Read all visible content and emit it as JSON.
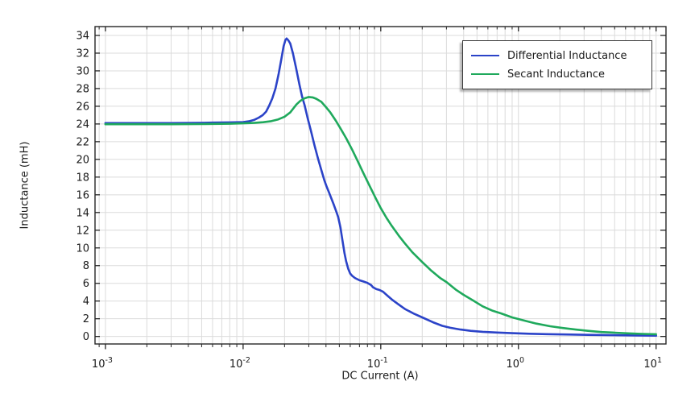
{
  "window": {
    "background": "#ffffff"
  },
  "chart_data": {
    "type": "line",
    "title": "",
    "xlabel": "DC Current (A)",
    "ylabel": "Inductance (mH)",
    "x_scale": "log",
    "x_range": [
      0.00084,
      11.8
    ],
    "x_major_tick_exponents": [
      -3,
      -2,
      -1,
      0,
      1
    ],
    "y_range": [
      -0.85,
      35
    ],
    "y_ticks": [
      0,
      2,
      4,
      6,
      8,
      10,
      12,
      14,
      16,
      18,
      20,
      22,
      24,
      26,
      28,
      30,
      32,
      34
    ],
    "grid": true,
    "colors": {
      "frame": "#262626",
      "grid": "#dbdbdb",
      "text": "#1a1a1a",
      "background": "#ffffff"
    },
    "legend": {
      "position": "top-right",
      "border_color": "#383838"
    },
    "series": [
      {
        "name": "Differential Inductance",
        "color": "#2b43c8",
        "points": [
          [
            0.001,
            24.1
          ],
          [
            0.002,
            24.1
          ],
          [
            0.003,
            24.1
          ],
          [
            0.0045,
            24.12
          ],
          [
            0.006,
            24.15
          ],
          [
            0.008,
            24.18
          ],
          [
            0.01,
            24.22
          ],
          [
            0.011,
            24.3
          ],
          [
            0.012,
            24.45
          ],
          [
            0.013,
            24.72
          ],
          [
            0.0139,
            25.0
          ],
          [
            0.0147,
            25.4
          ],
          [
            0.0155,
            26.1
          ],
          [
            0.0163,
            26.9
          ],
          [
            0.0172,
            28.0
          ],
          [
            0.0181,
            29.6
          ],
          [
            0.019,
            31.4
          ],
          [
            0.0197,
            32.8
          ],
          [
            0.0203,
            33.5
          ],
          [
            0.0207,
            33.65
          ],
          [
            0.0213,
            33.45
          ],
          [
            0.022,
            33.1
          ],
          [
            0.023,
            32.0
          ],
          [
            0.0242,
            30.4
          ],
          [
            0.0256,
            28.5
          ],
          [
            0.0268,
            27.1
          ],
          [
            0.028,
            26.1
          ],
          [
            0.0295,
            24.6
          ],
          [
            0.031,
            23.3
          ],
          [
            0.033,
            21.6
          ],
          [
            0.035,
            20.1
          ],
          [
            0.037,
            18.8
          ],
          [
            0.039,
            17.6
          ],
          [
            0.0405,
            16.9
          ],
          [
            0.042,
            16.3
          ],
          [
            0.0435,
            15.7
          ],
          [
            0.0455,
            14.9
          ],
          [
            0.0475,
            14.1
          ],
          [
            0.049,
            13.5
          ],
          [
            0.051,
            12.3
          ],
          [
            0.052,
            11.4
          ],
          [
            0.0535,
            10.2
          ],
          [
            0.0545,
            9.4
          ],
          [
            0.056,
            8.5
          ],
          [
            0.058,
            7.65
          ],
          [
            0.06,
            7.1
          ],
          [
            0.062,
            6.85
          ],
          [
            0.065,
            6.6
          ],
          [
            0.07,
            6.35
          ],
          [
            0.075,
            6.2
          ],
          [
            0.08,
            6.05
          ],
          [
            0.085,
            5.8
          ],
          [
            0.088,
            5.55
          ],
          [
            0.093,
            5.35
          ],
          [
            0.098,
            5.25
          ],
          [
            0.104,
            5.05
          ],
          [
            0.112,
            4.6
          ],
          [
            0.122,
            4.1
          ],
          [
            0.135,
            3.6
          ],
          [
            0.15,
            3.1
          ],
          [
            0.175,
            2.55
          ],
          [
            0.2,
            2.15
          ],
          [
            0.24,
            1.6
          ],
          [
            0.28,
            1.2
          ],
          [
            0.32,
            0.98
          ],
          [
            0.38,
            0.78
          ],
          [
            0.45,
            0.63
          ],
          [
            0.55,
            0.52
          ],
          [
            0.7,
            0.44
          ],
          [
            0.9,
            0.37
          ],
          [
            1.2,
            0.31
          ],
          [
            1.6,
            0.26
          ],
          [
            2.2,
            0.22
          ],
          [
            3.2,
            0.18
          ],
          [
            5.0,
            0.14
          ],
          [
            7.0,
            0.11
          ],
          [
            10,
            0.09
          ]
        ]
      },
      {
        "name": "Secant Inductance",
        "color": "#1fa95c",
        "points": [
          [
            0.001,
            23.97
          ],
          [
            0.003,
            23.97
          ],
          [
            0.005,
            23.99
          ],
          [
            0.008,
            24.03
          ],
          [
            0.01,
            24.07
          ],
          [
            0.012,
            24.12
          ],
          [
            0.014,
            24.2
          ],
          [
            0.016,
            24.32
          ],
          [
            0.018,
            24.52
          ],
          [
            0.02,
            24.82
          ],
          [
            0.022,
            25.3
          ],
          [
            0.0233,
            25.8
          ],
          [
            0.0244,
            26.2
          ],
          [
            0.026,
            26.6
          ],
          [
            0.028,
            26.9
          ],
          [
            0.03,
            27.05
          ],
          [
            0.032,
            27.0
          ],
          [
            0.034,
            26.85
          ],
          [
            0.037,
            26.5
          ],
          [
            0.04,
            25.9
          ],
          [
            0.043,
            25.3
          ],
          [
            0.047,
            24.4
          ],
          [
            0.051,
            23.5
          ],
          [
            0.056,
            22.4
          ],
          [
            0.062,
            21.1
          ],
          [
            0.068,
            19.8
          ],
          [
            0.075,
            18.4
          ],
          [
            0.083,
            17.0
          ],
          [
            0.092,
            15.6
          ],
          [
            0.1,
            14.5
          ],
          [
            0.11,
            13.4
          ],
          [
            0.12,
            12.5
          ],
          [
            0.135,
            11.4
          ],
          [
            0.15,
            10.5
          ],
          [
            0.17,
            9.5
          ],
          [
            0.2,
            8.4
          ],
          [
            0.23,
            7.5
          ],
          [
            0.27,
            6.6
          ],
          [
            0.3,
            6.15
          ],
          [
            0.35,
            5.3
          ],
          [
            0.4,
            4.7
          ],
          [
            0.47,
            4.05
          ],
          [
            0.55,
            3.4
          ],
          [
            0.65,
            2.9
          ],
          [
            0.75,
            2.6
          ],
          [
            0.9,
            2.15
          ],
          [
            1.1,
            1.8
          ],
          [
            1.35,
            1.45
          ],
          [
            1.7,
            1.15
          ],
          [
            2.1,
            0.95
          ],
          [
            2.6,
            0.78
          ],
          [
            3.2,
            0.63
          ],
          [
            4.0,
            0.5
          ],
          [
            5.0,
            0.42
          ],
          [
            6.5,
            0.34
          ],
          [
            8.0,
            0.29
          ],
          [
            10,
            0.25
          ]
        ]
      }
    ]
  }
}
